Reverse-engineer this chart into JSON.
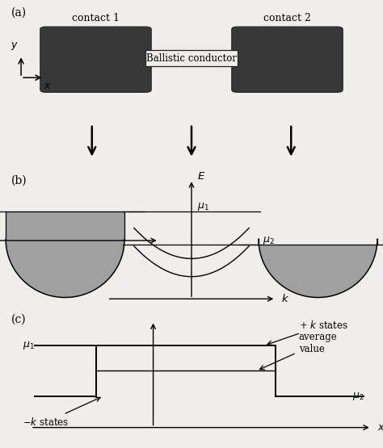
{
  "bg_color": "#f0eeea",
  "dark_gray": "#383838",
  "fill_gray": "#a0a0a0",
  "fill_gray2": "#b8b8b8",
  "panel_a_label": "(a)",
  "panel_b_label": "(b)",
  "panel_c_label": "(c)",
  "contact1_label": "contact 1",
  "contact2_label": "contact 2",
  "conductor_label": "Ballistic conductor",
  "mu1_label": "$\\mu_1$",
  "mu2_label": "$\\mu_2$",
  "E_label": "$E$",
  "k_label": "$k$",
  "x_label": "$x$",
  "y_label": "$y$",
  "plus_k_label": "+ $k$ states",
  "minus_k_label": "$-k$ states",
  "average_label": "average\nvalue"
}
